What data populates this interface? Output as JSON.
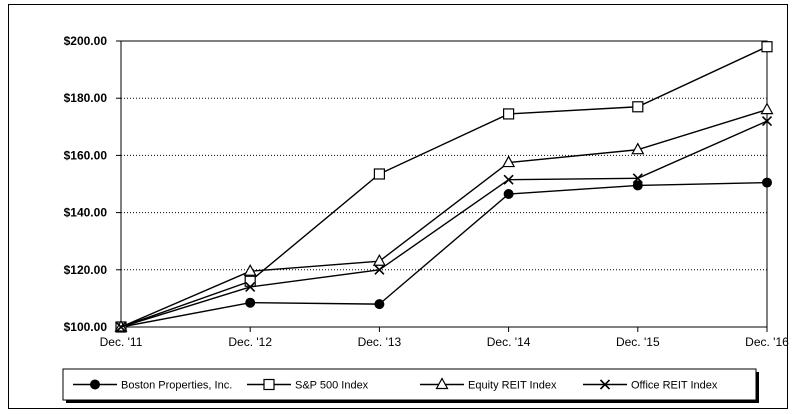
{
  "chart_data": {
    "type": "line",
    "title": "",
    "xlabel": "",
    "ylabel": "",
    "categories": [
      "Dec. '11",
      "Dec. '12",
      "Dec. '13",
      "Dec. '14",
      "Dec. '15",
      "Dec. '16"
    ],
    "ylim": [
      100,
      200
    ],
    "yticks": [
      100,
      120,
      140,
      160,
      180,
      200
    ],
    "ytick_labels": [
      "$100.00",
      "$120.00",
      "$140.00",
      "$160.00",
      "$180.00",
      "$200.00"
    ],
    "grid": "horizontal-dotted",
    "legend_position": "bottom",
    "series": [
      {
        "name": "Boston Properties, Inc.",
        "marker": "filled-circle",
        "values": [
          100.0,
          108.5,
          108.0,
          146.5,
          149.5,
          150.5
        ]
      },
      {
        "name": "S&P 500 Index",
        "marker": "open-square",
        "values": [
          100.0,
          116.0,
          153.5,
          174.5,
          177.0,
          198.0
        ]
      },
      {
        "name": "Equity REIT Index",
        "marker": "open-triangle",
        "values": [
          100.0,
          119.5,
          123.0,
          157.5,
          162.0,
          176.0
        ]
      },
      {
        "name": "Office REIT Index",
        "marker": "x",
        "values": [
          100.0,
          114.0,
          120.0,
          151.5,
          152.0,
          172.0
        ]
      }
    ],
    "colors": {
      "line": "#000000",
      "grid": "#000000",
      "background": "#ffffff"
    }
  }
}
